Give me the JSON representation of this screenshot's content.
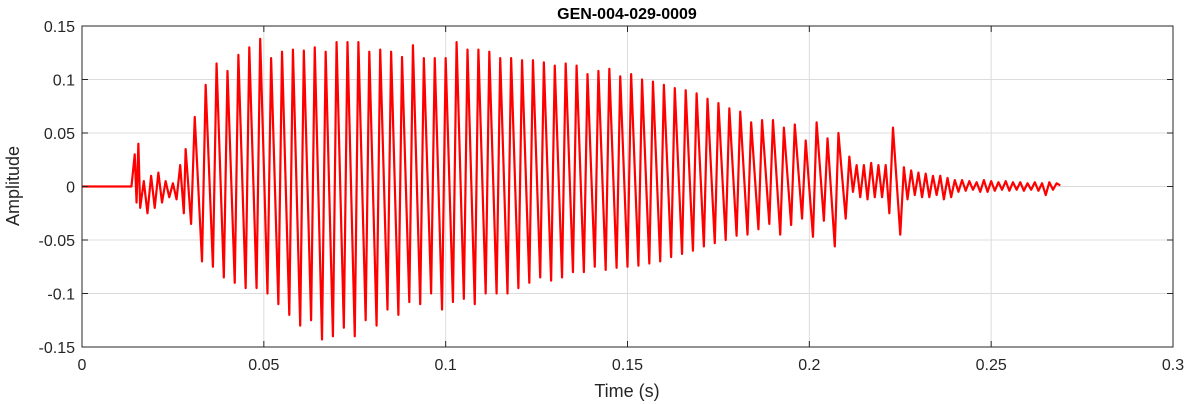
{
  "chart_data": {
    "type": "line",
    "title": "GEN-004-029-0009",
    "xlabel": "Time (s)",
    "ylabel": "Amplitude",
    "xlim": [
      0,
      0.3
    ],
    "ylim": [
      -0.15,
      0.15
    ],
    "xticks": [
      0,
      0.05,
      0.1,
      0.15,
      0.2,
      0.25,
      0.3
    ],
    "xtick_labels": [
      "0",
      "0.05",
      "0.1",
      "0.15",
      "0.2",
      "0.25",
      "0.3"
    ],
    "yticks": [
      -0.15,
      -0.1,
      -0.05,
      0,
      0.05,
      0.1,
      0.15
    ],
    "ytick_labels": [
      "-0.15",
      "-0.1",
      "-0.05",
      "0",
      "0.05",
      "0.1",
      "0.15"
    ],
    "grid": true,
    "box": true,
    "series": [
      {
        "color": "#ff0000",
        "data": [
          [
            0,
            0
          ],
          [
            0.0136,
            0
          ],
          [
            0.0145,
            0.03
          ],
          [
            0.015,
            -0.015
          ],
          [
            0.0155,
            0.04
          ],
          [
            0.016,
            -0.02
          ],
          [
            0.017,
            0.005
          ],
          [
            0.018,
            -0.025
          ],
          [
            0.019,
            0.01
          ],
          [
            0.02,
            -0.02
          ],
          [
            0.021,
            0.013
          ],
          [
            0.022,
            -0.015
          ],
          [
            0.023,
            0.005
          ],
          [
            0.024,
            -0.01
          ],
          [
            0.025,
            0.003
          ],
          [
            0.026,
            -0.012
          ],
          [
            0.027,
            0.02
          ],
          [
            0.028,
            -0.025
          ],
          [
            0.0285,
            0.035
          ],
          [
            0.03,
            -0.035
          ],
          [
            0.031,
            0.065
          ],
          [
            0.033,
            -0.07
          ],
          [
            0.034,
            0.095
          ],
          [
            0.036,
            -0.075
          ],
          [
            0.037,
            0.115
          ],
          [
            0.039,
            -0.085
          ],
          [
            0.04,
            0.108
          ],
          [
            0.042,
            -0.09
          ],
          [
            0.043,
            0.123
          ],
          [
            0.045,
            -0.095
          ],
          [
            0.046,
            0.13
          ],
          [
            0.048,
            -0.095
          ],
          [
            0.049,
            0.138
          ],
          [
            0.051,
            -0.1
          ],
          [
            0.052,
            0.12
          ],
          [
            0.054,
            -0.11
          ],
          [
            0.055,
            0.126
          ],
          [
            0.057,
            -0.12
          ],
          [
            0.058,
            0.128
          ],
          [
            0.06,
            -0.13
          ],
          [
            0.061,
            0.127
          ],
          [
            0.063,
            -0.125
          ],
          [
            0.064,
            0.13
          ],
          [
            0.066,
            -0.143
          ],
          [
            0.067,
            0.126
          ],
          [
            0.069,
            -0.14
          ],
          [
            0.07,
            0.135
          ],
          [
            0.072,
            -0.132
          ],
          [
            0.073,
            0.135
          ],
          [
            0.075,
            -0.14
          ],
          [
            0.076,
            0.135
          ],
          [
            0.078,
            -0.125
          ],
          [
            0.079,
            0.126
          ],
          [
            0.081,
            -0.13
          ],
          [
            0.082,
            0.128
          ],
          [
            0.084,
            -0.115
          ],
          [
            0.085,
            0.126
          ],
          [
            0.087,
            -0.12
          ],
          [
            0.088,
            0.121
          ],
          [
            0.09,
            -0.108
          ],
          [
            0.091,
            0.132
          ],
          [
            0.093,
            -0.11
          ],
          [
            0.094,
            0.12
          ],
          [
            0.096,
            -0.1
          ],
          [
            0.097,
            0.12
          ],
          [
            0.099,
            -0.115
          ],
          [
            0.1,
            0.12
          ],
          [
            0.102,
            -0.108
          ],
          [
            0.103,
            0.135
          ],
          [
            0.105,
            -0.105
          ],
          [
            0.106,
            0.128
          ],
          [
            0.108,
            -0.11
          ],
          [
            0.109,
            0.128
          ],
          [
            0.111,
            -0.1
          ],
          [
            0.112,
            0.126
          ],
          [
            0.114,
            -0.1
          ],
          [
            0.115,
            0.12
          ],
          [
            0.117,
            -0.1
          ],
          [
            0.118,
            0.12
          ],
          [
            0.12,
            -0.095
          ],
          [
            0.121,
            0.118
          ],
          [
            0.123,
            -0.09
          ],
          [
            0.124,
            0.118
          ],
          [
            0.126,
            -0.085
          ],
          [
            0.127,
            0.116
          ],
          [
            0.129,
            -0.088
          ],
          [
            0.13,
            0.113
          ],
          [
            0.132,
            -0.085
          ],
          [
            0.133,
            0.115
          ],
          [
            0.135,
            -0.08
          ],
          [
            0.136,
            0.113
          ],
          [
            0.138,
            -0.08
          ],
          [
            0.139,
            0.105
          ],
          [
            0.141,
            -0.075
          ],
          [
            0.142,
            0.108
          ],
          [
            0.144,
            -0.078
          ],
          [
            0.145,
            0.11
          ],
          [
            0.147,
            -0.076
          ],
          [
            0.148,
            0.103
          ],
          [
            0.15,
            -0.075
          ],
          [
            0.151,
            0.105
          ],
          [
            0.153,
            -0.074
          ],
          [
            0.154,
            0.1
          ],
          [
            0.156,
            -0.072
          ],
          [
            0.157,
            0.098
          ],
          [
            0.159,
            -0.07
          ],
          [
            0.16,
            0.095
          ],
          [
            0.162,
            -0.066
          ],
          [
            0.163,
            0.092
          ],
          [
            0.165,
            -0.063
          ],
          [
            0.166,
            0.09
          ],
          [
            0.168,
            -0.06
          ],
          [
            0.169,
            0.087
          ],
          [
            0.171,
            -0.056
          ],
          [
            0.172,
            0.082
          ],
          [
            0.174,
            -0.053
          ],
          [
            0.175,
            0.078
          ],
          [
            0.177,
            -0.05
          ],
          [
            0.178,
            0.073
          ],
          [
            0.18,
            -0.046
          ],
          [
            0.181,
            0.07
          ],
          [
            0.183,
            -0.045
          ],
          [
            0.184,
            0.06
          ],
          [
            0.186,
            -0.04
          ],
          [
            0.187,
            0.062
          ],
          [
            0.189,
            -0.035
          ],
          [
            0.19,
            0.062
          ],
          [
            0.192,
            -0.045
          ],
          [
            0.193,
            0.055
          ],
          [
            0.195,
            -0.036
          ],
          [
            0.196,
            0.058
          ],
          [
            0.198,
            -0.03
          ],
          [
            0.199,
            0.043
          ],
          [
            0.201,
            -0.047
          ],
          [
            0.202,
            0.06
          ],
          [
            0.204,
            -0.032
          ],
          [
            0.205,
            0.045
          ],
          [
            0.207,
            -0.056
          ],
          [
            0.208,
            0.05
          ],
          [
            0.21,
            -0.03
          ],
          [
            0.211,
            0.028
          ],
          [
            0.212,
            -0.005
          ],
          [
            0.213,
            0.02
          ],
          [
            0.214,
            -0.01
          ],
          [
            0.215,
            0.02
          ],
          [
            0.216,
            -0.012
          ],
          [
            0.217,
            0.022
          ],
          [
            0.218,
            -0.01
          ],
          [
            0.219,
            0.02
          ],
          [
            0.22,
            -0.01
          ],
          [
            0.221,
            0.02
          ],
          [
            0.222,
            -0.025
          ],
          [
            0.223,
            0.055
          ],
          [
            0.225,
            -0.045
          ],
          [
            0.226,
            0.018
          ],
          [
            0.227,
            -0.012
          ],
          [
            0.228,
            0.015
          ],
          [
            0.229,
            -0.008
          ],
          [
            0.23,
            0.013
          ],
          [
            0.231,
            -0.01
          ],
          [
            0.232,
            0.012
          ],
          [
            0.233,
            -0.01
          ],
          [
            0.234,
            0.01
          ],
          [
            0.235,
            -0.008
          ],
          [
            0.236,
            0.01
          ],
          [
            0.237,
            -0.012
          ],
          [
            0.238,
            0.008
          ],
          [
            0.239,
            -0.01
          ],
          [
            0.24,
            0.006
          ],
          [
            0.241,
            -0.005
          ],
          [
            0.242,
            0.006
          ],
          [
            0.243,
            -0.004
          ],
          [
            0.244,
            0.005
          ],
          [
            0.245,
            -0.003
          ],
          [
            0.246,
            0.004
          ],
          [
            0.247,
            -0.005
          ],
          [
            0.248,
            0.006
          ],
          [
            0.249,
            -0.005
          ],
          [
            0.25,
            0.005
          ],
          [
            0.251,
            -0.004
          ],
          [
            0.252,
            0.004
          ],
          [
            0.253,
            -0.003
          ],
          [
            0.254,
            0.005
          ],
          [
            0.255,
            -0.004
          ],
          [
            0.256,
            0.004
          ],
          [
            0.257,
            -0.003
          ],
          [
            0.258,
            0.004
          ],
          [
            0.259,
            -0.004
          ],
          [
            0.26,
            0.003
          ],
          [
            0.261,
            -0.003
          ],
          [
            0.262,
            0.004
          ],
          [
            0.263,
            -0.004
          ],
          [
            0.264,
            0.003
          ],
          [
            0.265,
            -0.008
          ],
          [
            0.266,
            0.004
          ],
          [
            0.267,
            -0.003
          ],
          [
            0.268,
            0.003
          ],
          [
            0.269,
            0.001
          ]
        ]
      }
    ]
  }
}
